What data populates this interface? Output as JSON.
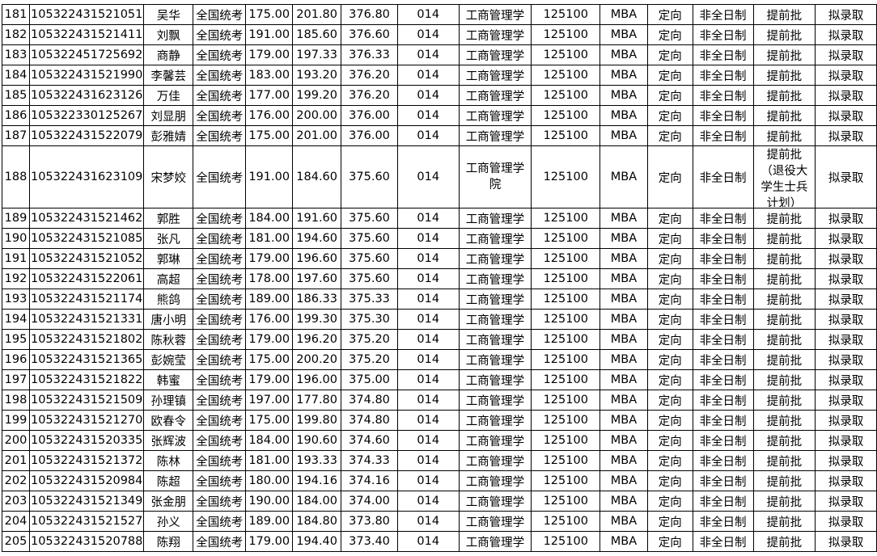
{
  "table": {
    "rows": [
      [
        "181",
        "105322431521051",
        "吴华",
        "全国统考",
        "175.00",
        "201.80",
        "376.80",
        "014",
        "工商管理学",
        "125100",
        "MBA",
        "定向",
        "非全日制",
        "提前批",
        "拟录取"
      ],
      [
        "182",
        "105322431521411",
        "刘飘",
        "全国统考",
        "191.00",
        "185.60",
        "376.60",
        "014",
        "工商管理学",
        "125100",
        "MBA",
        "定向",
        "非全日制",
        "提前批",
        "拟录取"
      ],
      [
        "183",
        "105322451725692",
        "商静",
        "全国统考",
        "179.00",
        "197.33",
        "376.33",
        "014",
        "工商管理学",
        "125100",
        "MBA",
        "定向",
        "非全日制",
        "提前批",
        "拟录取"
      ],
      [
        "184",
        "105322431521990",
        "李馨芸",
        "全国统考",
        "183.00",
        "193.20",
        "376.20",
        "014",
        "工商管理学",
        "125100",
        "MBA",
        "定向",
        "非全日制",
        "提前批",
        "拟录取"
      ],
      [
        "185",
        "105322431623126",
        "万佳",
        "全国统考",
        "177.00",
        "199.20",
        "376.20",
        "014",
        "工商管理学",
        "125100",
        "MBA",
        "定向",
        "非全日制",
        "提前批",
        "拟录取"
      ],
      [
        "186",
        "105322330125267",
        "刘显朋",
        "全国统考",
        "176.00",
        "200.00",
        "376.00",
        "014",
        "工商管理学",
        "125100",
        "MBA",
        "定向",
        "非全日制",
        "提前批",
        "拟录取"
      ],
      [
        "187",
        "105322431522079",
        "彭雅婧",
        "全国统考",
        "175.00",
        "201.00",
        "376.00",
        "014",
        "工商管理学",
        "125100",
        "MBA",
        "定向",
        "非全日制",
        "提前批",
        "拟录取"
      ],
      [
        "188",
        "105322431623109",
        "宋梦姣",
        "全国统考",
        "191.00",
        "184.60",
        "375.60",
        "014",
        "工商管理学院",
        "125100",
        "MBA",
        "定向",
        "非全日制",
        "提前批（退役大学生士兵计划）",
        "拟录取"
      ],
      [
        "189",
        "105322431521462",
        "郭胜",
        "全国统考",
        "184.00",
        "191.60",
        "375.60",
        "014",
        "工商管理学",
        "125100",
        "MBA",
        "定向",
        "非全日制",
        "提前批",
        "拟录取"
      ],
      [
        "190",
        "105322431521085",
        "张凡",
        "全国统考",
        "181.00",
        "194.60",
        "375.60",
        "014",
        "工商管理学",
        "125100",
        "MBA",
        "定向",
        "非全日制",
        "提前批",
        "拟录取"
      ],
      [
        "191",
        "105322431521052",
        "郭琳",
        "全国统考",
        "179.00",
        "196.60",
        "375.60",
        "014",
        "工商管理学",
        "125100",
        "MBA",
        "定向",
        "非全日制",
        "提前批",
        "拟录取"
      ],
      [
        "192",
        "105322431522061",
        "高超",
        "全国统考",
        "178.00",
        "197.60",
        "375.60",
        "014",
        "工商管理学",
        "125100",
        "MBA",
        "定向",
        "非全日制",
        "提前批",
        "拟录取"
      ],
      [
        "193",
        "105322431521174",
        "熊鸽",
        "全国统考",
        "189.00",
        "186.33",
        "375.33",
        "014",
        "工商管理学",
        "125100",
        "MBA",
        "定向",
        "非全日制",
        "提前批",
        "拟录取"
      ],
      [
        "194",
        "105322431521331",
        "唐小明",
        "全国统考",
        "176.00",
        "199.30",
        "375.30",
        "014",
        "工商管理学",
        "125100",
        "MBA",
        "定向",
        "非全日制",
        "提前批",
        "拟录取"
      ],
      [
        "195",
        "105322431521802",
        "陈秋蓉",
        "全国统考",
        "179.00",
        "196.20",
        "375.20",
        "014",
        "工商管理学",
        "125100",
        "MBA",
        "定向",
        "非全日制",
        "提前批",
        "拟录取"
      ],
      [
        "196",
        "105322431521365",
        "彭婉莹",
        "全国统考",
        "175.00",
        "200.20",
        "375.20",
        "014",
        "工商管理学",
        "125100",
        "MBA",
        "定向",
        "非全日制",
        "提前批",
        "拟录取"
      ],
      [
        "197",
        "105322431521822",
        "韩蜜",
        "全国统考",
        "179.00",
        "196.00",
        "375.00",
        "014",
        "工商管理学",
        "125100",
        "MBA",
        "定向",
        "非全日制",
        "提前批",
        "拟录取"
      ],
      [
        "198",
        "105322431521509",
        "孙理镇",
        "全国统考",
        "197.00",
        "177.80",
        "374.80",
        "014",
        "工商管理学",
        "125100",
        "MBA",
        "定向",
        "非全日制",
        "提前批",
        "拟录取"
      ],
      [
        "199",
        "105322431521270",
        "欧春令",
        "全国统考",
        "175.00",
        "199.80",
        "374.80",
        "014",
        "工商管理学",
        "125100",
        "MBA",
        "定向",
        "非全日制",
        "提前批",
        "拟录取"
      ],
      [
        "200",
        "105322431520335",
        "张辉波",
        "全国统考",
        "184.00",
        "190.60",
        "374.60",
        "014",
        "工商管理学",
        "125100",
        "MBA",
        "定向",
        "非全日制",
        "提前批",
        "拟录取"
      ],
      [
        "201",
        "105322431521372",
        "陈林",
        "全国统考",
        "181.00",
        "193.33",
        "374.33",
        "014",
        "工商管理学",
        "125100",
        "MBA",
        "定向",
        "非全日制",
        "提前批",
        "拟录取"
      ],
      [
        "202",
        "105322431520984",
        "陈超",
        "全国统考",
        "180.00",
        "194.16",
        "374.16",
        "014",
        "工商管理学",
        "125100",
        "MBA",
        "定向",
        "非全日制",
        "提前批",
        "拟录取"
      ],
      [
        "203",
        "105322431521349",
        "张金朋",
        "全国统考",
        "190.00",
        "184.00",
        "374.00",
        "014",
        "工商管理学",
        "125100",
        "MBA",
        "定向",
        "非全日制",
        "提前批",
        "拟录取"
      ],
      [
        "204",
        "105322431521527",
        "孙义",
        "全国统考",
        "189.00",
        "184.80",
        "373.80",
        "014",
        "工商管理学",
        "125100",
        "MBA",
        "定向",
        "非全日制",
        "提前批",
        "拟录取"
      ],
      [
        "205",
        "105322431520788",
        "陈翔",
        "全国统考",
        "179.00",
        "194.40",
        "373.40",
        "014",
        "工商管理学",
        "125100",
        "MBA",
        "定向",
        "非全日制",
        "提前批",
        "拟录取"
      ]
    ]
  }
}
